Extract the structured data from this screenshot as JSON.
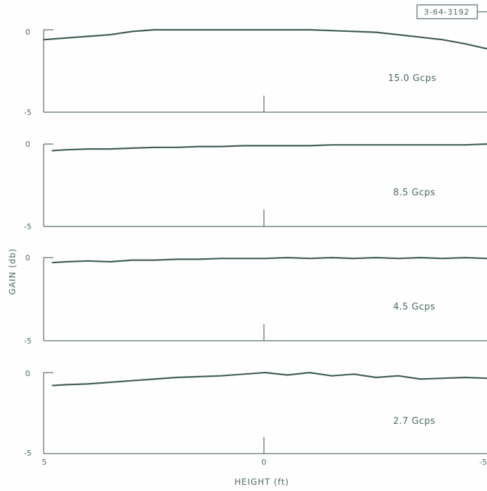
{
  "figure_id": "3-64-3192",
  "chart_data": {
    "type": "line",
    "ylabel": "GAIN (db)",
    "xlabel": "HEIGHT (ft)",
    "xlim": [
      5,
      -5
    ],
    "x_tick_labels": [
      "5",
      "0",
      "-5"
    ],
    "panels": [
      {
        "name": "15.0 Gcps",
        "ylim": [
          -5,
          0
        ],
        "y_tick_labels": [
          "0",
          "-5"
        ],
        "x": [
          5,
          4.5,
          4,
          3.5,
          3,
          2.5,
          2,
          1.5,
          1,
          0.5,
          0,
          -0.5,
          -1,
          -1.5,
          -2,
          -2.5,
          -3,
          -3.5,
          -4,
          -4.5,
          -5
        ],
        "values": [
          -0.6,
          -0.5,
          -0.4,
          -0.3,
          -0.1,
          0,
          0,
          0,
          0,
          0,
          0,
          0,
          0,
          -0.05,
          -0.1,
          -0.15,
          -0.3,
          -0.45,
          -0.6,
          -0.85,
          -1.15
        ]
      },
      {
        "name": "8.5 Gcps",
        "ylim": [
          -5,
          0
        ],
        "y_tick_labels": [
          "0",
          "-5"
        ],
        "x": [
          4.8,
          4.5,
          4,
          3.5,
          3,
          2.5,
          2,
          1.5,
          1,
          0.5,
          0,
          -0.5,
          -1,
          -1.5,
          -2,
          -2.5,
          -3,
          -3.5,
          -4,
          -4.5,
          -5
        ],
        "values": [
          -0.4,
          -0.35,
          -0.3,
          -0.3,
          -0.25,
          -0.2,
          -0.2,
          -0.15,
          -0.15,
          -0.1,
          -0.1,
          -0.1,
          -0.1,
          -0.05,
          -0.05,
          -0.05,
          -0.05,
          -0.05,
          -0.05,
          -0.05,
          0
        ]
      },
      {
        "name": "4.5 Gcps",
        "ylim": [
          -5,
          0
        ],
        "y_tick_labels": [
          "0",
          "-5"
        ],
        "x": [
          4.8,
          4.5,
          4,
          3.5,
          3,
          2.5,
          2,
          1.5,
          1,
          0.5,
          0,
          -0.5,
          -1,
          -1.5,
          -2,
          -2.5,
          -3,
          -3.5,
          -4,
          -4.5,
          -5
        ],
        "values": [
          -0.3,
          -0.25,
          -0.2,
          -0.25,
          -0.15,
          -0.15,
          -0.1,
          -0.1,
          -0.05,
          -0.05,
          -0.05,
          0,
          -0.05,
          0,
          -0.05,
          0,
          -0.05,
          0,
          -0.05,
          0,
          -0.05
        ]
      },
      {
        "name": "2.7 Gcps",
        "ylim": [
          -5,
          0
        ],
        "y_tick_labels": [
          "0",
          "-5"
        ],
        "x": [
          4.8,
          4.5,
          4,
          3.5,
          3,
          2.5,
          2,
          1.5,
          1,
          0.5,
          0,
          -0.5,
          -1,
          -1.5,
          -2,
          -2.5,
          -3,
          -3.5,
          -4,
          -4.5,
          -5
        ],
        "values": [
          -0.8,
          -0.75,
          -0.7,
          -0.6,
          -0.5,
          -0.4,
          -0.3,
          -0.25,
          -0.2,
          -0.1,
          0,
          -0.15,
          0,
          -0.2,
          -0.1,
          -0.3,
          -0.2,
          -0.4,
          -0.35,
          -0.3,
          -0.35
        ]
      }
    ]
  }
}
